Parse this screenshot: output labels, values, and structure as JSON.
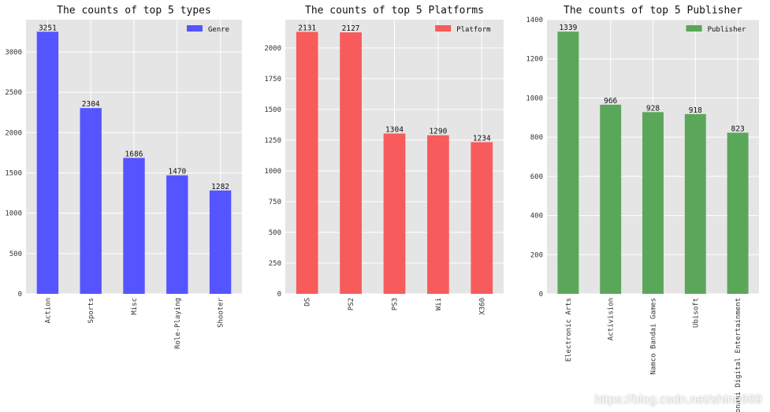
{
  "chart_data": [
    {
      "type": "bar",
      "title": "The counts of top 5 types",
      "categories": [
        "Action",
        "Sports",
        "Misc",
        "Role-Playing",
        "Shooter"
      ],
      "series": [
        {
          "name": "Genre",
          "values": [
            3251,
            2304,
            1686,
            1470,
            1282
          ]
        }
      ],
      "ylim": [
        0,
        3400
      ],
      "yticks": [
        0,
        500,
        1000,
        1500,
        2000,
        2500,
        3000
      ],
      "color": "#5555ff",
      "grid": true,
      "legend": "top-right"
    },
    {
      "type": "bar",
      "title": "The counts of top 5 Platforms",
      "categories": [
        "DS",
        "PS2",
        "PS3",
        "Wii",
        "X360"
      ],
      "series": [
        {
          "name": "Platform",
          "values": [
            2131,
            2127,
            1304,
            1290,
            1234
          ]
        }
      ],
      "ylim": [
        0,
        2230
      ],
      "yticks": [
        0,
        250,
        500,
        750,
        1000,
        1250,
        1500,
        1750,
        2000
      ],
      "color": "#f75b5b",
      "grid": true,
      "legend": "top-right"
    },
    {
      "type": "bar",
      "title": "The counts of top 5 Publisher",
      "categories": [
        "Electronic Arts",
        "Activision",
        "Namco Bandai Games",
        "Ubisoft",
        "Konami Digital Entertainment"
      ],
      "series": [
        {
          "name": "Publisher",
          "values": [
            1339,
            966,
            928,
            918,
            823
          ]
        }
      ],
      "ylim": [
        0,
        1400
      ],
      "yticks": [
        0,
        200,
        400,
        600,
        800,
        1000,
        1200,
        1400
      ],
      "color": "#5aa75a",
      "grid": true,
      "legend": "top-right"
    }
  ],
  "watermark": "https://blog.csdn.net/shine669"
}
